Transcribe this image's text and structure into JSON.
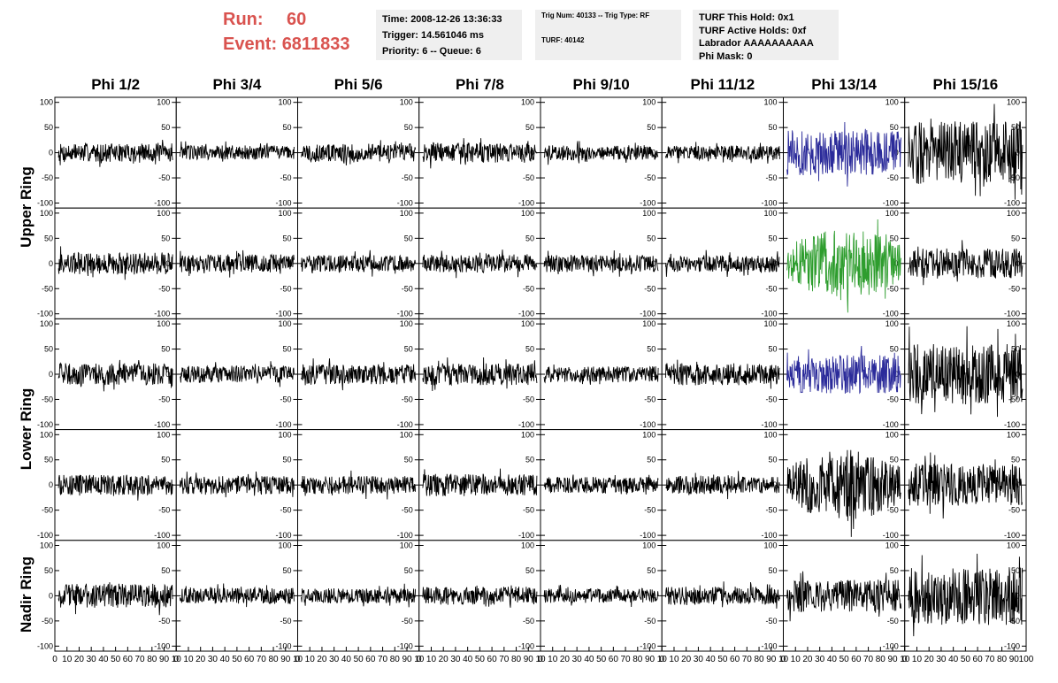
{
  "header": {
    "run_label": "Run:",
    "run_value": "60",
    "event_label": "Event:",
    "event_value": "6811833",
    "time_line": "Time: 2008-12-26 13:36:33",
    "trigger_line": "Trigger: 14.561046 ms",
    "priority_line": "Priority: 6 -- Queue: 6",
    "trig_line": "Trig Num: 40133 -- Trig Type: RF",
    "turf_line": "TURF: 40142",
    "turf_hold_line": "TURF This Hold: 0x1",
    "turf_active_line": "TURF Active Holds: 0xf",
    "labrador_line": "Labrador AAAAAAAAAA",
    "phi_mask_line": "Phi Mask: 0"
  },
  "chart_data": {
    "type": "line",
    "columns": [
      "Phi 1/2",
      "Phi 3/4",
      "Phi 5/6",
      "Phi 7/8",
      "Phi 9/10",
      "Phi 11/12",
      "Phi 13/14",
      "Phi 15/16"
    ],
    "row_labels": [
      {
        "text": "Upper Ring",
        "rows": [
          0,
          1
        ]
      },
      {
        "text": "Lower Ring",
        "rows": [
          2,
          3
        ]
      },
      {
        "text": "Nadir Ring",
        "rows": [
          4
        ]
      }
    ],
    "rows": 5,
    "xlim": [
      0,
      100
    ],
    "ylim": [
      -110,
      110
    ],
    "yticks": [
      -100,
      -50,
      0,
      50,
      100
    ],
    "xticks": [
      0,
      10,
      20,
      30,
      40,
      50,
      60,
      70,
      80,
      90,
      100
    ],
    "xtick_labels_last_column": [
      "0",
      "10",
      "20",
      "30",
      "40",
      "50",
      "60",
      "70",
      "80",
      "90",
      "100"
    ],
    "xtick_labels_other_columns": [
      "0",
      "10",
      "20",
      "30",
      "40",
      "50",
      "60",
      "70",
      "80",
      "90",
      "10"
    ],
    "waveform_points": 260,
    "waveform_x_range": [
      3,
      97
    ],
    "amplitudes": [
      [
        18,
        15,
        18,
        20,
        15,
        14,
        45,
        62
      ],
      [
        22,
        18,
        17,
        18,
        17,
        17,
        70,
        30
      ],
      [
        22,
        17,
        20,
        22,
        16,
        22,
        38,
        60
      ],
      [
        20,
        18,
        18,
        22,
        16,
        18,
        72,
        42
      ],
      [
        24,
        16,
        15,
        18,
        14,
        18,
        32,
        58
      ]
    ],
    "colors": [
      [
        "#000000",
        "#000000",
        "#000000",
        "#000000",
        "#000000",
        "#000000",
        "#2b2b9a",
        "#000000"
      ],
      [
        "#000000",
        "#000000",
        "#000000",
        "#000000",
        "#000000",
        "#000000",
        "#2e9d2e",
        "#000000"
      ],
      [
        "#000000",
        "#000000",
        "#000000",
        "#000000",
        "#000000",
        "#000000",
        "#2b2b9a",
        "#000000"
      ],
      [
        "#000000",
        "#000000",
        "#000000",
        "#000000",
        "#000000",
        "#000000",
        "#000000",
        "#000000"
      ],
      [
        "#000000",
        "#000000",
        "#000000",
        "#000000",
        "#000000",
        "#000000",
        "#000000",
        "#000000"
      ]
    ]
  }
}
